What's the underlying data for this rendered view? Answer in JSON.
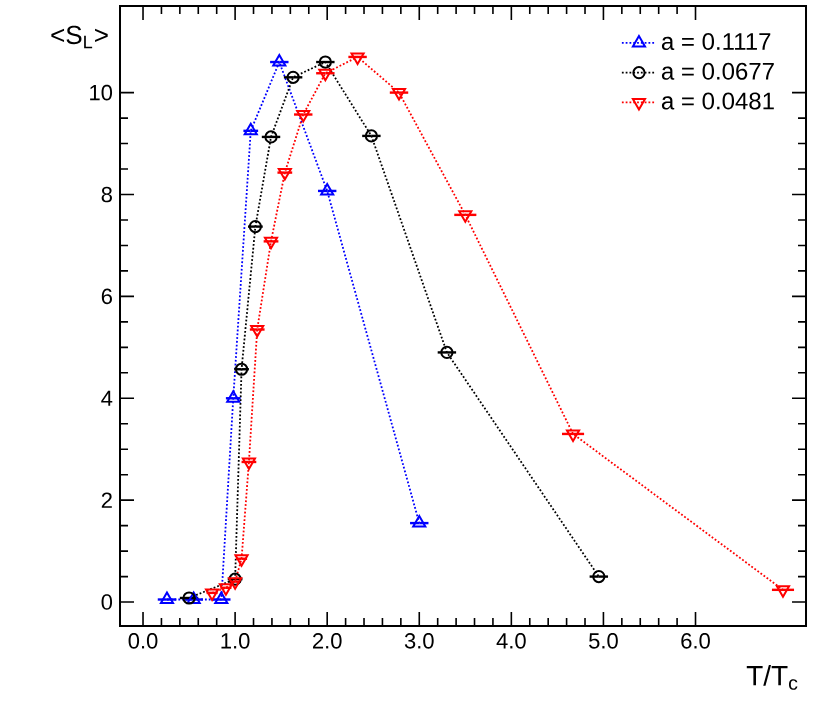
{
  "chart_data": {
    "type": "line",
    "xlabel": "T/T$_{c}$",
    "ylabel": "<S$_{L}$>",
    "xlim": [
      -0.25,
      7.2
    ],
    "ylim": [
      -0.47,
      11.7
    ],
    "xticks": [
      {
        "value": 0,
        "label": "0.0"
      },
      {
        "value": 1,
        "label": "1.0"
      },
      {
        "value": 2,
        "label": "2.0"
      },
      {
        "value": 3,
        "label": "3.0"
      },
      {
        "value": 4,
        "label": "4.0"
      },
      {
        "value": 5,
        "label": "5.0"
      },
      {
        "value": 6,
        "label": "6.0"
      }
    ],
    "yticks": [
      0,
      2,
      4,
      6,
      8,
      10
    ],
    "legend": "top right",
    "line_style": "dotted",
    "series": [
      {
        "name": "a = 0.1117",
        "color": "#0000ff",
        "marker": "triangle",
        "x": [
          0.26,
          0.55,
          0.85,
          0.98,
          1.17,
          1.48,
          2.0,
          3.0
        ],
        "values": [
          0.05,
          0.05,
          0.05,
          4.0,
          9.25,
          10.6,
          8.07,
          1.55
        ],
        "xerrors": [
          0.1,
          0.1,
          0.1,
          0.08,
          0.08,
          0.1,
          0.1,
          0.1
        ]
      },
      {
        "name": "a = 0.0677",
        "color": "#000000",
        "marker": "circle",
        "x": [
          0.5,
          1.0,
          1.07,
          1.22,
          1.39,
          1.63,
          1.98,
          2.48,
          3.3,
          4.95
        ],
        "values": [
          0.08,
          0.45,
          4.57,
          7.37,
          9.13,
          10.3,
          10.6,
          9.15,
          4.9,
          0.5
        ],
        "xerrors": [
          0.1,
          0.08,
          0.08,
          0.08,
          0.1,
          0.1,
          0.1,
          0.1,
          0.1,
          0.1
        ]
      },
      {
        "name": "a = 0.0481",
        "color": "#ff0000",
        "marker": "triangle_down",
        "x": [
          0.75,
          0.9,
          1.0,
          1.07,
          1.15,
          1.24,
          1.39,
          1.54,
          1.74,
          1.98,
          2.33,
          2.78,
          3.5,
          4.67,
          6.95
        ],
        "values": [
          0.18,
          0.28,
          0.4,
          0.85,
          2.75,
          5.35,
          7.08,
          8.43,
          9.57,
          10.38,
          10.7,
          10.0,
          7.6,
          3.3,
          0.24
        ],
        "xerrors": [
          0.06,
          0.06,
          0.06,
          0.06,
          0.08,
          0.08,
          0.08,
          0.08,
          0.1,
          0.1,
          0.1,
          0.1,
          0.12,
          0.12,
          0.12
        ]
      }
    ]
  }
}
